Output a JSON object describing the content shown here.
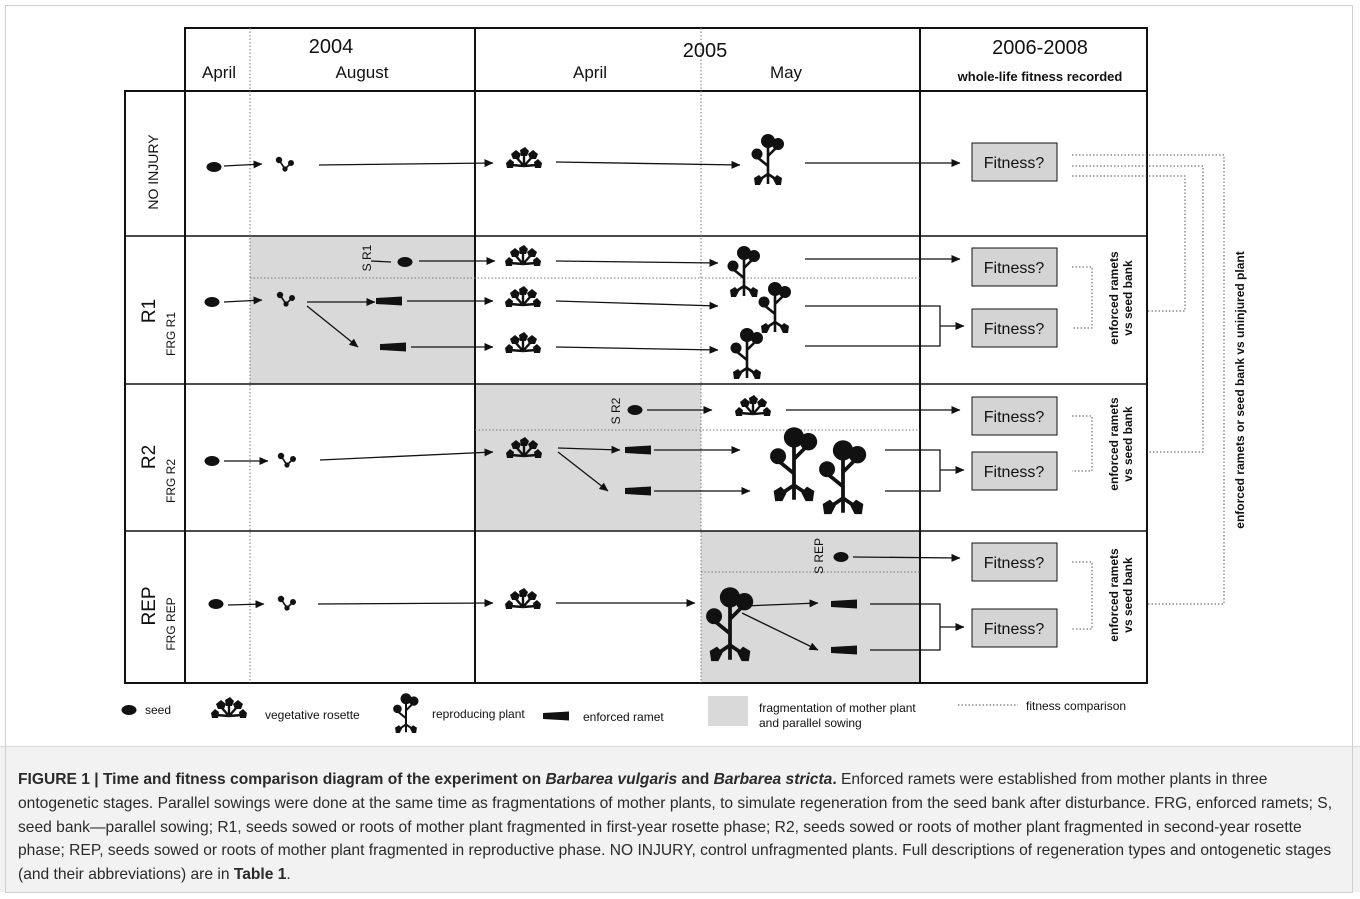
{
  "columns": {
    "y2004": "2004",
    "y2005": "2005",
    "y2006": "2006-2008",
    "april_2004": "April",
    "august": "August",
    "april_2005": "April",
    "may": "May",
    "whole_life": "whole-life fitness recorded"
  },
  "rows": {
    "no_injury": "NO INJURY",
    "r1": "R1",
    "frg_r1": "FRG R1",
    "r2": "R2",
    "frg_r2": "FRG R2",
    "rep": "REP",
    "frg_rep": "FRG REP"
  },
  "sowing_labels": {
    "s_r1": "S R1",
    "s_r2": "S R2",
    "s_rep": "S REP"
  },
  "fitness_label": "Fitness?",
  "comparison_labels": {
    "enforced_line1": "enforced ramets",
    "enforced_line2": "vs seed bank",
    "overall": "enforced ramets or seed bank vs uninjured plant"
  },
  "legend": {
    "seed": "seed",
    "rosette": "vegetative rosette",
    "reproducing": "reproducing plant",
    "ramet": "enforced ramet",
    "fragmentation_line1": "fragmentation of mother plant",
    "fragmentation_line2": "and parallel sowing",
    "fitness_comparison": "fitness comparison"
  },
  "caption": {
    "label": "FIGURE 1 | Time and fitness comparison diagram of the experiment on ",
    "species1": "Barbarea vulgaris",
    "and": " and ",
    "species2": "Barbarea stricta",
    "period": ".",
    "body": " Enforced ramets were established from mother plants in three ontogenetic stages. Parallel sowings were done at the same time as fragmentations of mother plants, to simulate regeneration from the seed bank after disturbance. FRG, enforced ramets; S, seed bank—parallel sowing; R1, seeds sowed or roots of mother plant fragmented in first-year rosette phase; R2, seeds sowed or roots of mother plant fragmented in second-year rosette phase; REP, seeds sowed or roots of mother plant fragmented in reproductive phase. NO INJURY, control unfragmented plants. Full descriptions of regeneration types and ontogenetic stages (and their abbreviations) are in ",
    "table_ref": "Table 1",
    "end": "."
  },
  "colors": {
    "shade": "#d9d9d9",
    "fitness_box": "#d4d4d4",
    "ink": "#111111",
    "caption_bg": "#f2f2f2"
  }
}
